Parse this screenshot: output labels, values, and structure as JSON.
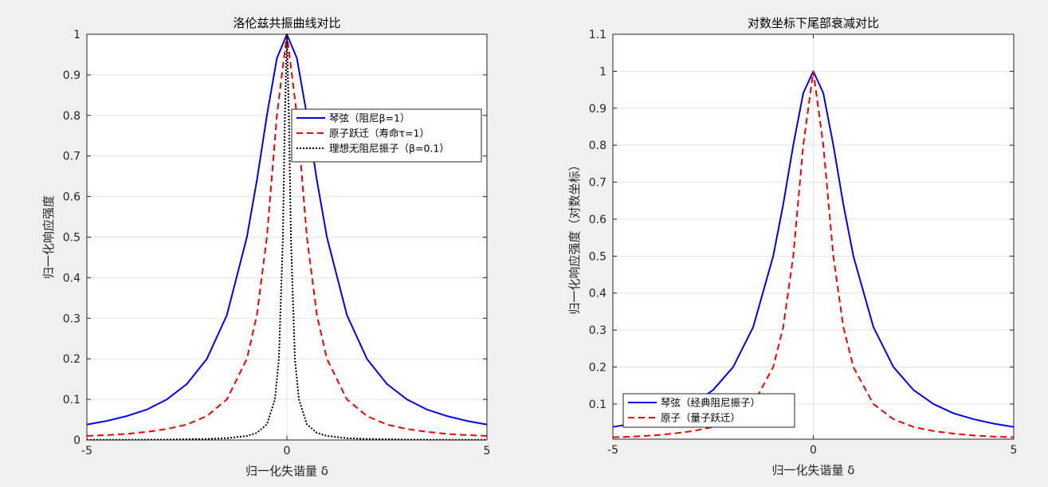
{
  "chart_data": [
    {
      "type": "line",
      "title": "洛伦兹共振曲线对比",
      "xlabel": "归一化失谐量 δ",
      "ylabel": "归一化响应强度",
      "xlim": [
        -5,
        5
      ],
      "ylim": [
        0,
        1
      ],
      "xticks": [
        -5,
        0,
        5
      ],
      "xtick_labels": [
        "-5",
        "0",
        "5"
      ],
      "yticks": [
        0,
        0.1,
        0.2,
        0.3,
        0.4,
        0.5,
        0.6,
        0.7,
        0.8,
        0.9,
        1
      ],
      "ytick_labels": [
        "0",
        "0.1",
        "0.2",
        "0.3",
        "0.4",
        "0.5",
        "0.6",
        "0.7",
        "0.8",
        "0.9",
        "1"
      ],
      "grid": true,
      "legend_position": "upper right",
      "series": [
        {
          "name": "琴弦（阻尼β=1）",
          "color": "#0000ee",
          "style": "solid",
          "width": 2,
          "x": [
            -5,
            -4.5,
            -4,
            -3.5,
            -3,
            -2.5,
            -2,
            -1.5,
            -1,
            -0.75,
            -0.5,
            -0.25,
            0,
            0.25,
            0.5,
            0.75,
            1,
            1.5,
            2,
            2.5,
            3,
            3.5,
            4,
            4.5,
            5
          ],
          "y": [
            0.038,
            0.047,
            0.059,
            0.075,
            0.1,
            0.138,
            0.2,
            0.308,
            0.5,
            0.64,
            0.8,
            0.941,
            1,
            0.941,
            0.8,
            0.64,
            0.5,
            0.308,
            0.2,
            0.138,
            0.1,
            0.075,
            0.059,
            0.047,
            0.038
          ]
        },
        {
          "name": "原子跃迁（寿命τ=1）",
          "color": "#ee0000",
          "style": "dashed",
          "width": 2,
          "x": [
            -5,
            -4.5,
            -4,
            -3.5,
            -3,
            -2.5,
            -2,
            -1.5,
            -1,
            -0.75,
            -0.5,
            -0.25,
            0,
            0.25,
            0.5,
            0.75,
            1,
            1.5,
            2,
            2.5,
            3,
            3.5,
            4,
            4.5,
            5
          ],
          "y": [
            0.01,
            0.012,
            0.015,
            0.02,
            0.027,
            0.038,
            0.059,
            0.1,
            0.2,
            0.308,
            0.5,
            0.8,
            1,
            0.8,
            0.5,
            0.308,
            0.2,
            0.1,
            0.059,
            0.038,
            0.027,
            0.02,
            0.015,
            0.012,
            0.01
          ]
        },
        {
          "name": "理想无阻尼振子（β=0.1）",
          "color": "#000000",
          "style": "dotted",
          "width": 2,
          "x": [
            -5,
            -4,
            -3,
            -2,
            -1.5,
            -1,
            -0.75,
            -0.5,
            -0.3,
            -0.2,
            -0.1,
            -0.05,
            0,
            0.05,
            0.1,
            0.2,
            0.3,
            0.5,
            0.75,
            1,
            1.5,
            2,
            3,
            4,
            5
          ],
          "y": [
            0.0004,
            0.0006,
            0.0011,
            0.0025,
            0.0044,
            0.0099,
            0.0175,
            0.0385,
            0.1,
            0.2,
            0.5,
            0.8,
            1,
            0.8,
            0.5,
            0.2,
            0.1,
            0.0385,
            0.0175,
            0.0099,
            0.0044,
            0.0025,
            0.0011,
            0.0006,
            0.0004
          ]
        }
      ]
    },
    {
      "type": "line",
      "title": "对数坐标下尾部衰减对比",
      "xlabel": "归一化失谐量 δ",
      "ylabel": "归一化响应强度（对数坐标）",
      "xlim": [
        -5,
        5
      ],
      "ylim": [
        0.005,
        1.1
      ],
      "xticks": [
        -5,
        0,
        5
      ],
      "xtick_labels": [
        "-5",
        "0",
        "5"
      ],
      "yticks": [
        0.1,
        0.2,
        0.3,
        0.4,
        0.5,
        0.6,
        0.7,
        0.8,
        0.9,
        1,
        1.1
      ],
      "ytick_labels": [
        "0.1",
        "0.2",
        "0.3",
        "0.4",
        "0.5",
        "0.6",
        "0.7",
        "0.8",
        "0.9",
        "1",
        "1.1"
      ],
      "grid": true,
      "legend_position": "lower left",
      "series": [
        {
          "name": "琴弦（经典阻尼振子）",
          "color": "#0000ee",
          "style": "solid",
          "width": 2,
          "x": [
            -5,
            -4.5,
            -4,
            -3.5,
            -3,
            -2.5,
            -2,
            -1.5,
            -1,
            -0.75,
            -0.5,
            -0.25,
            0,
            0.25,
            0.5,
            0.75,
            1,
            1.5,
            2,
            2.5,
            3,
            3.5,
            4,
            4.5,
            5
          ],
          "y": [
            0.038,
            0.047,
            0.059,
            0.075,
            0.1,
            0.138,
            0.2,
            0.308,
            0.5,
            0.64,
            0.8,
            0.941,
            1,
            0.941,
            0.8,
            0.64,
            0.5,
            0.308,
            0.2,
            0.138,
            0.1,
            0.075,
            0.059,
            0.047,
            0.038
          ]
        },
        {
          "name": "原子（量子跃迁）",
          "color": "#ee0000",
          "style": "dashed",
          "width": 2,
          "x": [
            -5,
            -4.5,
            -4,
            -3.5,
            -3,
            -2.5,
            -2,
            -1.5,
            -1,
            -0.75,
            -0.5,
            -0.25,
            0,
            0.25,
            0.5,
            0.75,
            1,
            1.5,
            2,
            2.5,
            3,
            3.5,
            4,
            4.5,
            5
          ],
          "y": [
            0.01,
            0.012,
            0.015,
            0.02,
            0.027,
            0.038,
            0.059,
            0.1,
            0.2,
            0.308,
            0.5,
            0.8,
            1,
            0.8,
            0.5,
            0.308,
            0.2,
            0.1,
            0.059,
            0.038,
            0.027,
            0.02,
            0.015,
            0.012,
            0.01
          ]
        }
      ]
    }
  ]
}
